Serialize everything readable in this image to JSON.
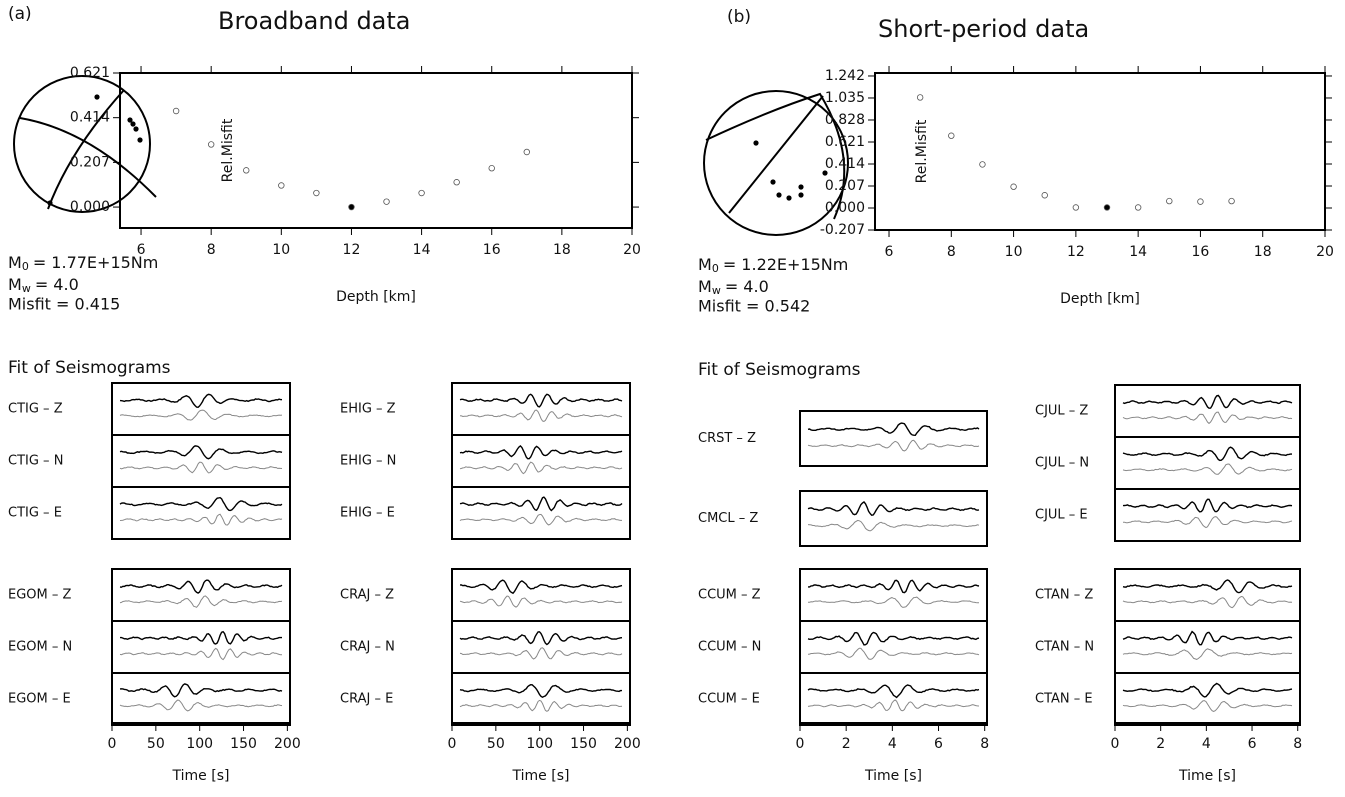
{
  "chart_data": [
    {
      "type": "scatter",
      "title": "Broadband data",
      "x_label": "Depth [km]",
      "y_label": "Rel.Misfit",
      "x": [
        7,
        8,
        9,
        10,
        11,
        12,
        13,
        14,
        15,
        16,
        17
      ],
      "y": [
        0.445,
        0.29,
        0.17,
        0.1,
        0.065,
        0.0,
        0.025,
        0.065,
        0.115,
        0.18,
        0.255
      ],
      "colors": [
        "#ffffff",
        "#ffffff",
        "#ffffff",
        "#ffffff",
        "#ffffff",
        "#000000",
        "#ffffff",
        "#ffffff",
        "#ffffff",
        "#ffffff",
        "#ffffff"
      ],
      "xlim": [
        5.4,
        20
      ],
      "ylim": [
        -0.097,
        0.621
      ],
      "xticks": [
        6,
        8,
        10,
        12,
        14,
        16,
        18,
        20
      ],
      "yticks": [
        {
          "value": 0,
          "label": "0.000"
        },
        0.207,
        0.414,
        0.621
      ]
    },
    {
      "type": "scatter",
      "title": "Short-period data",
      "x_label": "Depth [km]",
      "y_label": "Rel.Misfit",
      "x": [
        7,
        8,
        9,
        10,
        11,
        12,
        13,
        14,
        15,
        16,
        17
      ],
      "y": [
        1.04,
        0.68,
        0.41,
        0.2,
        0.12,
        0.005,
        0.005,
        0.005,
        0.065,
        0.06,
        0.065
      ],
      "colors": [
        "#ffffff",
        "#ffffff",
        "#ffffff",
        "#ffffff",
        "#ffffff",
        "#ffffff",
        "#000000",
        "#ffffff",
        "#ffffff",
        "#ffffff",
        "#ffffff"
      ],
      "xlim": [
        5.55,
        20
      ],
      "ylim": [
        -0.207,
        1.27
      ],
      "xticks": [
        6,
        8,
        10,
        12,
        14,
        16,
        18,
        20
      ],
      "yticks": [
        -0.207,
        {
          "value": 0,
          "label": "0.000"
        },
        0.207,
        0.414,
        0.621,
        0.828,
        1.035,
        1.242
      ]
    }
  ],
  "panels": [
    {
      "label": "(a)",
      "moment_symbol": "M",
      "moment_sub": "0",
      "moment_value": "=  1.77E+15Nm",
      "mw_symbol": "M",
      "mw_sub": "w",
      "mw_value": "=  4.0",
      "misfit": "Misfit =  0.415",
      "seismogram_title": "Fit of Seismograms",
      "columns": [
        {
          "groups": [
            [
              "CTIG – Z",
              "CTIG – N",
              "CTIG – E"
            ],
            [
              "EGOM – Z",
              "EGOM – N",
              "EGOM – E"
            ]
          ],
          "time_label": "Time [s]",
          "time_lim": [
            0,
            203
          ],
          "time_ticks": [
            0,
            50,
            100,
            150,
            200
          ]
        },
        {
          "groups": [
            [
              "EHIG – Z",
              "EHIG – N",
              "EHIG – E"
            ],
            [
              "CRAJ – Z",
              "CRAJ – N",
              "CRAJ – E"
            ]
          ],
          "time_label": "Time [s]",
          "time_lim": [
            0,
            203
          ],
          "time_ticks": [
            0,
            50,
            100,
            150,
            200
          ]
        }
      ]
    },
    {
      "label": "(b)",
      "moment_symbol": "M",
      "moment_sub": "0",
      "moment_value": "=  1.22E+15Nm",
      "mw_symbol": "M",
      "mw_sub": "w",
      "mw_value": "=  4.0",
      "misfit": "Misfit =  0.542",
      "seismogram_title": "Fit of Seismograms",
      "columns": [
        {
          "groups": [
            [
              "CRST – Z"
            ],
            [
              "CMCL – Z"
            ],
            [
              "CCUM – Z",
              "CCUM – N",
              "CCUM – E"
            ]
          ],
          "time_label": "Time [s]",
          "time_lim": [
            0,
            8.1
          ],
          "time_ticks": [
            0,
            2,
            4,
            6,
            8
          ]
        },
        {
          "groups": [
            [
              "CJUL – Z",
              "CJUL – N",
              "CJUL – E"
            ],
            [
              "CTAN – Z",
              "CTAN – N",
              "CTAN – E"
            ]
          ],
          "time_label": "Time [s]",
          "time_lim": [
            0,
            8.1
          ],
          "time_ticks": [
            0,
            2,
            4,
            6,
            8
          ]
        }
      ]
    }
  ]
}
